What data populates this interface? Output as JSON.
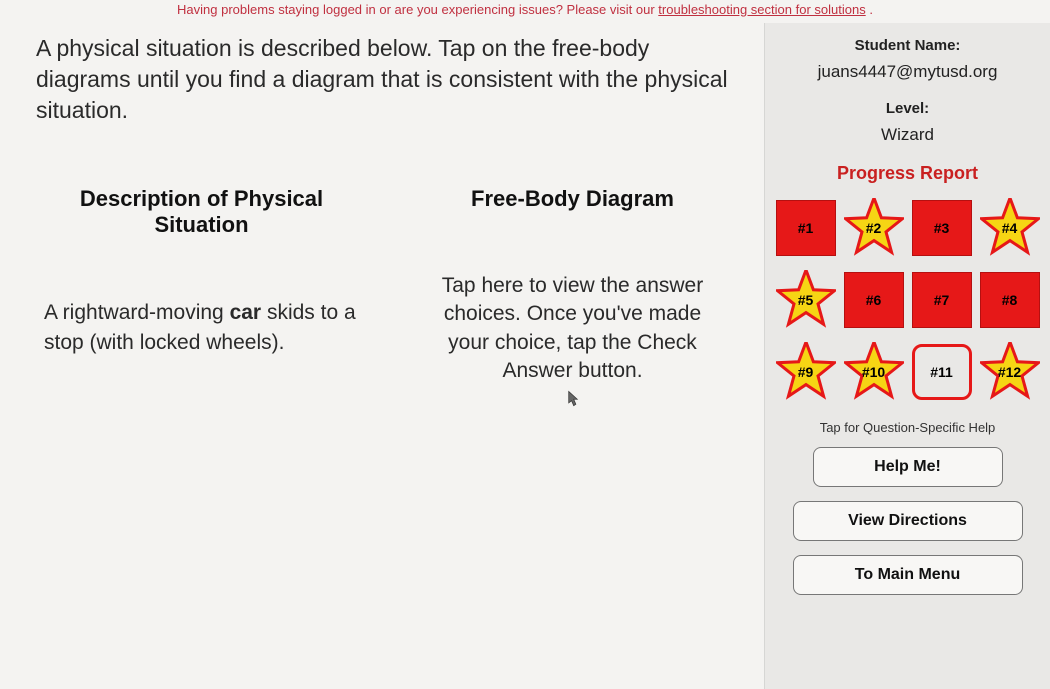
{
  "banner": {
    "prefix": "Having problems staying logged in or are you experiencing issues? Please visit our ",
    "link_text": "troubleshooting section for solutions",
    "suffix": "."
  },
  "main": {
    "instructions": "A physical situation is described below. Tap on the free-body diagrams until you find a diagram that is consistent with the physical situation.",
    "description_heading": "Description of Physical Situation",
    "diagram_heading": "Free-Body Diagram",
    "situation_pre": "A rightward-moving ",
    "situation_bold": "car",
    "situation_post": " skids to a stop (with locked wheels).",
    "tap_prompt": "Tap here to view the answer choices. Once you've made your choice, tap the Check Answer button."
  },
  "sidebar": {
    "student_label": "Student Name:",
    "student_value": "juans4447@mytusd.org",
    "level_label": "Level:",
    "level_value": "Wizard",
    "progress_title": "Progress Report",
    "help_hint": "Tap for Question-Specific Help",
    "buttons": {
      "help": "Help Me!",
      "directions": "View Directions",
      "menu": "To Main Menu"
    },
    "tiles": [
      {
        "num": "#1",
        "kind": "box"
      },
      {
        "num": "#2",
        "kind": "star"
      },
      {
        "num": "#3",
        "kind": "box"
      },
      {
        "num": "#4",
        "kind": "star"
      },
      {
        "num": "#5",
        "kind": "star"
      },
      {
        "num": "#6",
        "kind": "box"
      },
      {
        "num": "#7",
        "kind": "box"
      },
      {
        "num": "#8",
        "kind": "box"
      },
      {
        "num": "#9",
        "kind": "star"
      },
      {
        "num": "#10",
        "kind": "star"
      },
      {
        "num": "#11",
        "kind": "current"
      },
      {
        "num": "#12",
        "kind": "star"
      }
    ],
    "star_style": {
      "fill": "#f6d514",
      "stroke": "#e61818",
      "stroke_width": 3,
      "size": 60
    },
    "box_style": {
      "fill": "#e61818",
      "border": "#b51010"
    }
  },
  "colors": {
    "banner_text": "#c03040",
    "sidebar_bg": "#e9e8e6",
    "progress_red": "#c92020"
  }
}
